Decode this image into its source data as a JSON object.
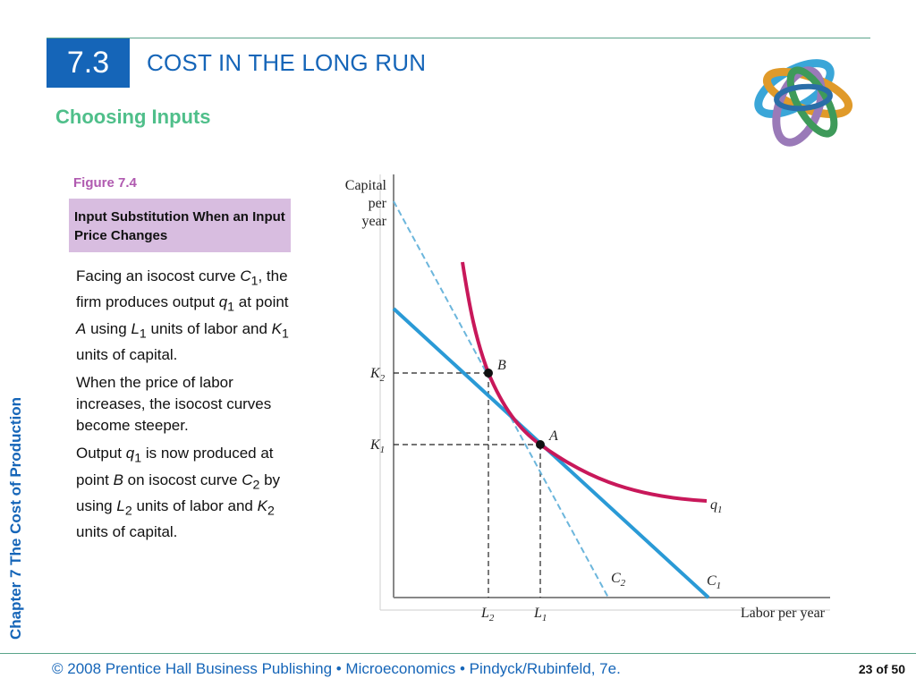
{
  "header": {
    "section_number": "7.3",
    "title": "COST IN THE LONG RUN",
    "subtitle": "Choosing Inputs"
  },
  "sidebar": {
    "chapter_text": "Chapter 7  The Cost of Production"
  },
  "figure": {
    "label": "Figure 7.4",
    "caption": "Input Substitution When an Input Price Changes"
  },
  "body": {
    "p1": {
      "t1": "Facing an isocost curve ",
      "C": "C",
      "s1": "1",
      "t2": ", the firm produces output ",
      "q": "q",
      "s2": "1",
      "t3": " at point ",
      "A": "A",
      "t4": " using ",
      "L": "L",
      "s3": "1",
      "t5": " units of labor and ",
      "K": "K",
      "s4": "1",
      "t6": " units of capital."
    },
    "p2": "When the price of labor increases, the isocost curves become steeper.",
    "p3": {
      "t1": "Output ",
      "q": "q",
      "s1": "1",
      "t2": " is now produced at point ",
      "B": "B",
      "t3": " on isocost curve ",
      "C": "C",
      "s2": "2",
      "t4": " by using ",
      "L": "L",
      "s3": "2",
      "t5": " units of labor and ",
      "K": "K",
      "s4": "2",
      "t6": " units of capital."
    }
  },
  "chart_data": {
    "type": "diagram",
    "y_axis_label": [
      "Capital",
      "per",
      "year"
    ],
    "x_axis_label": "Labor per year",
    "isoquant_label": {
      "main": "q",
      "sub": "1"
    },
    "isocost_C1": {
      "main": "C",
      "sub": "1"
    },
    "isocost_C2": {
      "main": "C",
      "sub": "2"
    },
    "point_A": "A",
    "point_B": "B",
    "tick_K1": {
      "main": "K",
      "sub": "1"
    },
    "tick_K2": {
      "main": "K",
      "sub": "2"
    },
    "tick_L1": {
      "main": "L",
      "sub": "1"
    },
    "tick_L2": {
      "main": "L",
      "sub": "2"
    },
    "colors": {
      "isoquant": "#c8185a",
      "isocost_C1": "#2a9ad6",
      "isocost_C2": "#6cb6dc",
      "axes": "#888888"
    }
  },
  "footer": {
    "text": "© 2008 Prentice Hall Business Publishing  •  Microeconomics  •  Pindyck/Rubinfeld, 7e.",
    "page": "23 of 50"
  }
}
